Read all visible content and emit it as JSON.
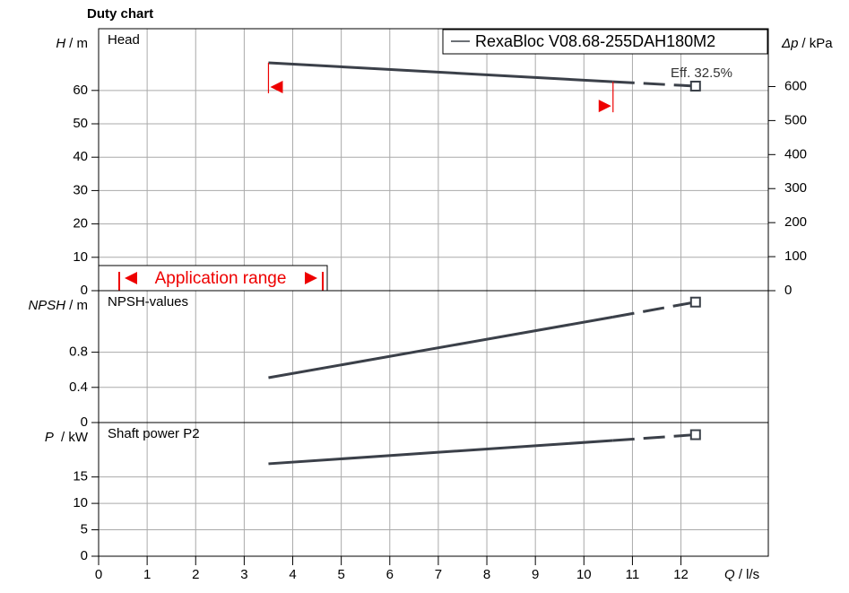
{
  "chart_data": {
    "type": "line",
    "title": "Duty chart",
    "x": [
      3.5,
      10.6,
      12.3
    ],
    "xlim": [
      0,
      13.8
    ],
    "xticks": [
      0,
      1,
      2,
      3,
      4,
      5,
      6,
      7,
      8,
      9,
      10,
      11,
      12
    ],
    "xlabel": {
      "symbol": "Q",
      "unit": "/ l/s"
    },
    "series_name": "RexaBloc V08.68-255DAH180M2",
    "color": "#3b4049",
    "annotation": "Eff. 32.5%",
    "application_range": "Application range",
    "grid": true,
    "panels": [
      {
        "label": "Head",
        "ylabel": {
          "symbol": "H",
          "unit": "/ m"
        },
        "ylim": [
          0,
          78.5
        ],
        "yticks": [
          0,
          10,
          20,
          30,
          40,
          50,
          60
        ],
        "values": [
          68.3,
          62.6,
          61.3
        ],
        "y2label": {
          "symbol": "Δp",
          "unit": "/ kPa"
        },
        "y2lim": [
          0,
          770
        ],
        "y2ticks": [
          0,
          100,
          200,
          300,
          400,
          500,
          600
        ]
      },
      {
        "label": "NPSH-values",
        "ylabel": {
          "symbol": "NPSH",
          "unit": "/ m"
        },
        "ylim": [
          0,
          1.5
        ],
        "yticks": [
          0,
          0.4,
          0.8
        ],
        "values": [
          0.51,
          1.2,
          1.37
        ]
      },
      {
        "label": "Shaft power P2",
        "ylabel": {
          "symbol": "P",
          "unit": " / kW"
        },
        "ylim": [
          0,
          25.3
        ],
        "yticks": [
          0,
          5,
          10,
          15
        ],
        "values": [
          17.5,
          21.9,
          23.0
        ]
      }
    ]
  }
}
